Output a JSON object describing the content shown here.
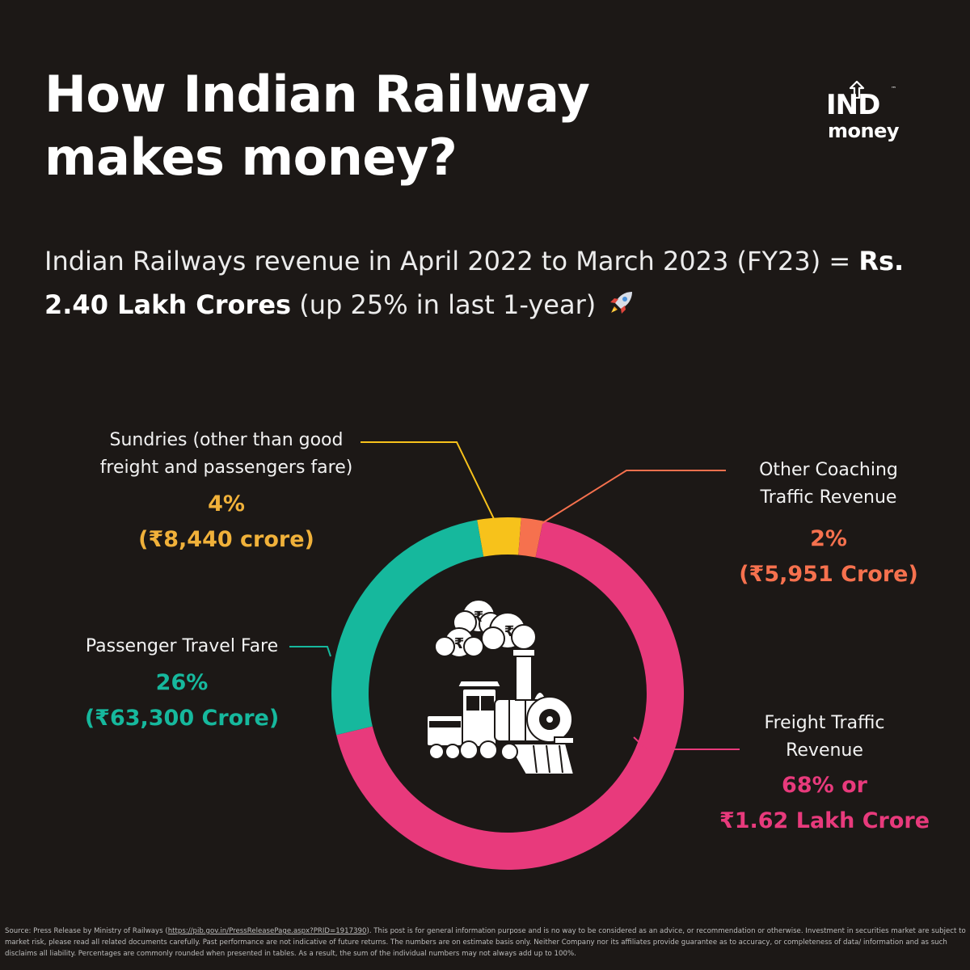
{
  "title": "How Indian Railway makes money?",
  "logo": {
    "top": "IND",
    "bottom": "money",
    "trademark": "™"
  },
  "subtitle": {
    "prefix": "Indian Railways revenue in April 2022 to March 2023 (FY23) = ",
    "highlight": "Rs. 2.40 Lakh Crores",
    "suffix": " (up 25% in last 1-year)",
    "emoji_icon": "rocket-icon"
  },
  "chart_data": {
    "type": "pie",
    "donut": true,
    "categories": [
      "Sundries (other than good freight and passengers fare)",
      "Other Coaching Traffic Revenue",
      "Freight Traffic Revenue",
      "Passenger Travel Fare"
    ],
    "values": [
      4,
      2,
      68,
      26
    ],
    "amounts": [
      "₹8,440 crore",
      "₹5,951 Crore",
      "₹1.62 Lakh Crore",
      "₹63,300 Crore"
    ],
    "colors": [
      "#f7c21b",
      "#f6714e",
      "#e83a7c",
      "#16b89d"
    ],
    "center_icon": "train-with-rupee-smoke-icon"
  },
  "labels": {
    "sundries": {
      "name_1": "Sundries (other than good",
      "name_2": "freight and passengers fare)",
      "pct": "4%",
      "amount": "(₹8,440 crore)"
    },
    "coaching": {
      "name_1": "Other Coaching",
      "name_2": "Traffic Revenue",
      "pct": "2%",
      "amount": "(₹5,951 Crore)"
    },
    "passenger": {
      "name_1": "Passenger Travel Fare",
      "pct": "26%",
      "amount": "(₹63,300 Crore)"
    },
    "freight": {
      "name_1": "Freight Traffic",
      "name_2": "Revenue",
      "pct": "68% or",
      "amount": "₹1.62 Lakh Crore"
    }
  },
  "footer": {
    "before_link": "Source: Press Release by Ministry of Railways (",
    "link": "https://pib.gov.in/PressReleasePage.aspx?PRID=1917390",
    "after_link": "). This post is for general information purpose and is no way to be considered as an advice, or recommendation or otherwise. Investment in securities market are subject to market risk, please read all related documents carefully. Past performance are not indicative of future returns. The numbers are on estimate basis only. Neither Company nor its affiliates provide guarantee as to accuracy, or completeness of data/ information and as such disclaims all liability. Percentages are commonly rounded when presented in tables. As a result, the sum of the individual numbers may not always add up to 100%."
  }
}
